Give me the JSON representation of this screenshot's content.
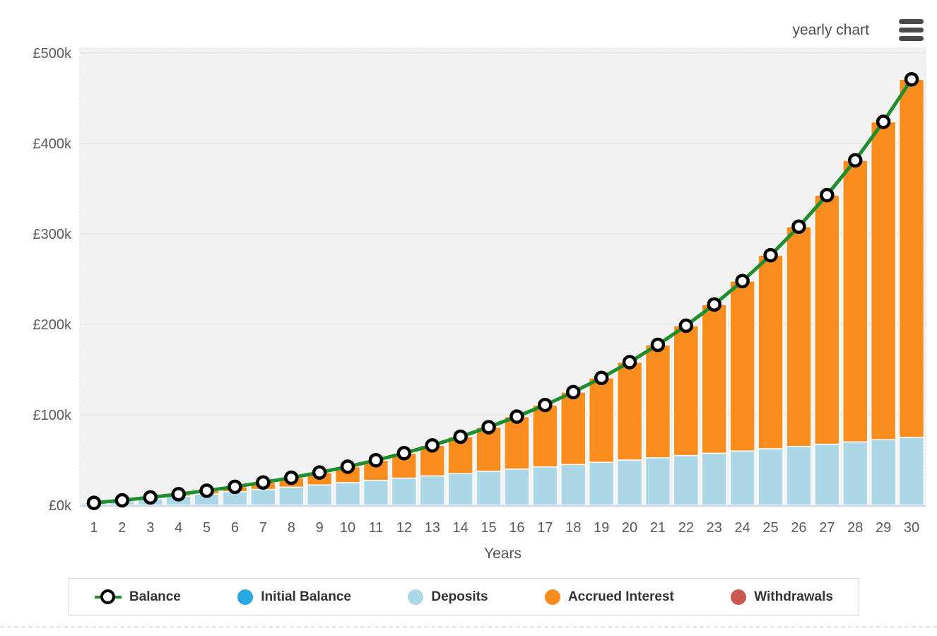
{
  "header": {
    "title": "yearly chart"
  },
  "colors": {
    "balance_line": "#1e8e2e",
    "initial_balance": "#29a9e1",
    "deposits": "#abd7e6",
    "accrued_interest": "#fb8c1e",
    "withdrawals": "#ca5852",
    "plot_bg": "#f2f2f2",
    "grid_line": "#e4e4e4",
    "axis_line": "#ccd6eb",
    "axis_text": "#595959",
    "legend_text": "#333333"
  },
  "chart_data": {
    "type": "bar",
    "subtype": "stacked-columns-with-line-overlay",
    "title": "yearly chart",
    "xlabel": "Years",
    "ylabel": "",
    "currency": "£",
    "grid": true,
    "legend_position": "bottom",
    "categories": [
      1,
      2,
      3,
      4,
      5,
      6,
      7,
      8,
      9,
      10,
      11,
      12,
      13,
      14,
      15,
      16,
      17,
      18,
      19,
      20,
      21,
      22,
      23,
      24,
      25,
      26,
      27,
      28,
      29,
      30
    ],
    "y_tick_values": [
      0,
      100000,
      200000,
      300000,
      400000,
      500000
    ],
    "y_tick_labels": [
      "£0k",
      "£100k",
      "£200k",
      "£300k",
      "£400k",
      "£500k"
    ],
    "ylim": [
      0,
      505000
    ],
    "series": [
      {
        "name": "Initial Balance",
        "type": "column",
        "color": "#29a9e1",
        "values": [
          0,
          0,
          0,
          0,
          0,
          0,
          0,
          0,
          0,
          0,
          0,
          0,
          0,
          0,
          0,
          0,
          0,
          0,
          0,
          0,
          0,
          0,
          0,
          0,
          0,
          0,
          0,
          0,
          0,
          0
        ]
      },
      {
        "name": "Deposits",
        "type": "column",
        "color": "#abd7e6",
        "values": [
          2500,
          5000,
          7500,
          10000,
          12500,
          15000,
          17500,
          20000,
          22500,
          25000,
          27500,
          30000,
          32500,
          35000,
          37500,
          40000,
          42500,
          45000,
          47500,
          50000,
          52500,
          55000,
          57500,
          60000,
          62500,
          65000,
          67500,
          70000,
          72500,
          75000
        ]
      },
      {
        "name": "Accrued Interest",
        "type": "column",
        "color": "#fb8c1e",
        "values": [
          118,
          510,
          1205,
          2234,
          3633,
          5440,
          7698,
          10454,
          13761,
          17676,
          22263,
          27591,
          33740,
          40794,
          48848,
          58008,
          68388,
          80117,
          93337,
          108202,
          124885,
          143578,
          164489,
          187852,
          213924,
          242987,
          275355,
          311374,
          351427,
          395935
        ]
      },
      {
        "name": "Withdrawals",
        "type": "column",
        "color": "#ca5852",
        "values": [
          0,
          0,
          0,
          0,
          0,
          0,
          0,
          0,
          0,
          0,
          0,
          0,
          0,
          0,
          0,
          0,
          0,
          0,
          0,
          0,
          0,
          0,
          0,
          0,
          0,
          0,
          0,
          0,
          0,
          0
        ]
      },
      {
        "name": "Balance",
        "type": "line",
        "color": "#1e8e2e",
        "values": [
          2618,
          5510,
          8705,
          12234,
          16133,
          20440,
          25198,
          30454,
          36261,
          42676,
          49763,
          57591,
          66240,
          75794,
          86348,
          98008,
          110888,
          125117,
          140837,
          158202,
          177385,
          198578,
          221989,
          247852,
          276424,
          307987,
          342855,
          381374,
          423927,
          470935
        ]
      }
    ]
  },
  "legend": {
    "items": [
      {
        "label": "Balance",
        "marker": "line-ring",
        "color": "#1e8e2e"
      },
      {
        "label": "Initial Balance",
        "marker": "circle",
        "color": "#29a9e1"
      },
      {
        "label": "Deposits",
        "marker": "circle",
        "color": "#abd7e6"
      },
      {
        "label": "Accrued Interest",
        "marker": "circle",
        "color": "#fb8c1e"
      },
      {
        "label": "Withdrawals",
        "marker": "circle",
        "color": "#ca5852"
      }
    ]
  }
}
